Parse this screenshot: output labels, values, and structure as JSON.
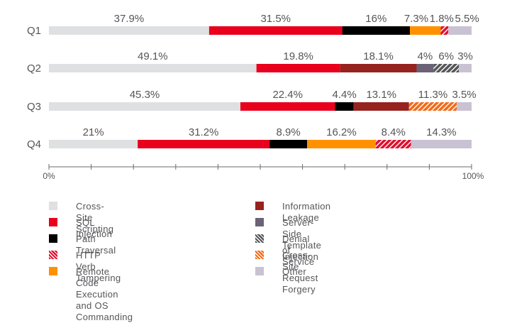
{
  "chart_data": {
    "type": "bar",
    "orientation": "horizontal",
    "stacked": true,
    "title": "",
    "xlabel": "",
    "ylabel": "",
    "xlim": [
      0,
      100
    ],
    "x_tick_labels": [
      "0%",
      "100%"
    ],
    "x_tick_count": 11,
    "grid": false,
    "legend_position": "bottom",
    "categories": [
      "Q1",
      "Q2",
      "Q3",
      "Q4"
    ],
    "series": [
      {
        "name": "Cross-Site Scripting",
        "color": "#dfe0e2",
        "pattern": "solid",
        "values": [
          37.9,
          49.1,
          45.3,
          21
        ]
      },
      {
        "name": "SQL Injection",
        "color": "#e8001c",
        "pattern": "solid",
        "values": [
          31.5,
          19.8,
          22.4,
          31.2
        ]
      },
      {
        "name": "Path Traversal",
        "color": "#000000",
        "pattern": "solid",
        "values": [
          16,
          0,
          4.4,
          8.9
        ]
      },
      {
        "name": "HTTP Verb Tampering",
        "color": "#e0102e",
        "pattern": "hatch",
        "values": [
          1.8,
          0,
          0,
          8.4
        ]
      },
      {
        "name": "Remote Code Execution\nand OS Commanding",
        "color": "#ff9100",
        "pattern": "solid",
        "values": [
          7.3,
          0,
          0,
          16.2
        ]
      },
      {
        "name": "Information Leakage",
        "color": "#97231f",
        "pattern": "solid",
        "values": [
          0,
          18.1,
          13.1,
          0
        ]
      },
      {
        "name": "Server-Side Template Injection",
        "color": "#6b6277",
        "pattern": "solid",
        "values": [
          0,
          4,
          0,
          0
        ]
      },
      {
        "name": "Denial of Service",
        "color": "#555558",
        "pattern": "hatch",
        "values": [
          0,
          6,
          0,
          0
        ]
      },
      {
        "name": "Cross-Site Request Forgery",
        "color": "#f26a17",
        "pattern": "hatch",
        "values": [
          0,
          0,
          11.3,
          0
        ]
      },
      {
        "name": "Other",
        "color": "#c9c2d2",
        "pattern": "solid",
        "values": [
          5.5,
          3,
          3.5,
          14.3
        ]
      }
    ],
    "stack_order": [
      [
        "Cross-Site Scripting",
        "SQL Injection",
        "Path Traversal",
        "Remote Code Execution\nand OS Commanding",
        "HTTP Verb Tampering",
        "Other"
      ],
      [
        "Cross-Site Scripting",
        "SQL Injection",
        "Information Leakage",
        "Server-Side Template Injection",
        "Denial of Service",
        "Other"
      ],
      [
        "Cross-Site Scripting",
        "SQL Injection",
        "Path Traversal",
        "Information Leakage",
        "Cross-Site Request Forgery",
        "Other"
      ],
      [
        "Cross-Site Scripting",
        "SQL Injection",
        "Path Traversal",
        "Remote Code Execution\nand OS Commanding",
        "HTTP Verb Tampering",
        "Other"
      ]
    ],
    "data_labels": [
      [
        "37.9%",
        "31.5%",
        "16%",
        "7.3%",
        "1.8%",
        "5.5%"
      ],
      [
        "49.1%",
        "19.8%",
        "18.1%",
        "4%",
        "6%",
        "3%"
      ],
      [
        "45.3%",
        "22.4%",
        "4.4%",
        "13.1%",
        "11.3%",
        "3.5%"
      ],
      [
        "21%",
        "31.2%",
        "8.9%",
        "16.2%",
        "8.4%",
        "14.3%"
      ]
    ],
    "legend_columns": [
      [
        "Cross-Site Scripting",
        "SQL Injection",
        "Path Traversal",
        "HTTP Verb Tampering",
        "Remote Code Execution\nand OS Commanding"
      ],
      [
        "Information Leakage",
        "Server-Side Template Injection",
        "Denial of Service",
        "Cross-Site Request Forgery",
        "Other"
      ]
    ]
  }
}
